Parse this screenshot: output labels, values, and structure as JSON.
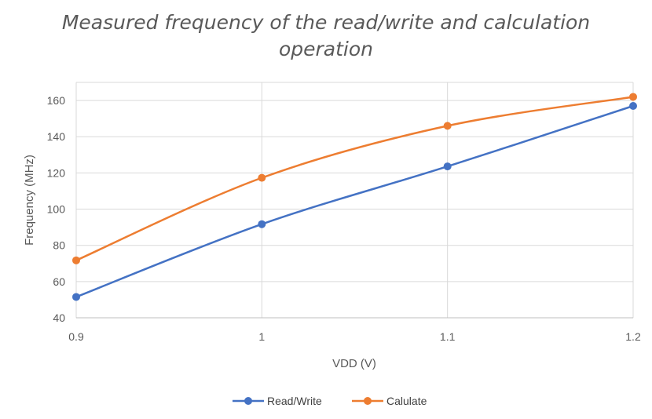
{
  "chart_data": {
    "type": "line",
    "title_lines": [
      "Measured frequency of the read/write and calculation",
      "operation"
    ],
    "xlabel": "VDD (V)",
    "ylabel": "Frequency (MHz)",
    "x": [
      0.9,
      1.0,
      1.1,
      1.2
    ],
    "x_tick_labels": [
      "0.9",
      "1",
      "1.1",
      "1.2"
    ],
    "y_ticks": [
      40,
      60,
      80,
      100,
      120,
      140,
      160
    ],
    "ylim": [
      40,
      170
    ],
    "xlim": [
      0.9,
      1.2
    ],
    "grid": true,
    "smooth": true,
    "legend_position": "bottom",
    "series": [
      {
        "name": "Read/Write",
        "color": "#4472C4",
        "values": [
          51.5,
          91.7,
          123.6,
          157
        ]
      },
      {
        "name": "Calulate",
        "color": "#ED7D31",
        "values": [
          71.7,
          117.3,
          146,
          162
        ]
      }
    ]
  }
}
